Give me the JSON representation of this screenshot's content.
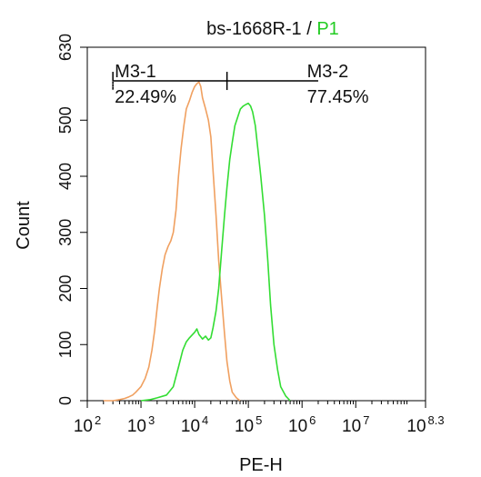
{
  "chart_data": {
    "type": "line",
    "title_main": "bs-1668R-1 / ",
    "title_gate": "P1",
    "xlabel": "PE-H",
    "ylabel": "Count",
    "x_scale": "log",
    "xlim": [
      100,
      199526231
    ],
    "ylim": [
      0,
      630
    ],
    "x_ticks": [
      {
        "value": 100,
        "base": "10",
        "exp": "2"
      },
      {
        "value": 1000,
        "base": "10",
        "exp": "3"
      },
      {
        "value": 10000,
        "base": "10",
        "exp": "4"
      },
      {
        "value": 100000,
        "base": "10",
        "exp": "5"
      },
      {
        "value": 1000000,
        "base": "10",
        "exp": "6"
      },
      {
        "value": 10000000,
        "base": "10",
        "exp": "7"
      },
      {
        "value": 199526231,
        "base": "10",
        "exp": "8.3"
      }
    ],
    "y_ticks": [
      0,
      100,
      200,
      300,
      400,
      500,
      630
    ],
    "grid": false,
    "series": [
      {
        "color": "#f0a060",
        "points": [
          [
            200,
            0
          ],
          [
            300,
            0
          ],
          [
            400,
            2
          ],
          [
            500,
            4
          ],
          [
            600,
            7
          ],
          [
            700,
            10
          ],
          [
            800,
            15
          ],
          [
            1000,
            25
          ],
          [
            1200,
            40
          ],
          [
            1400,
            60
          ],
          [
            1600,
            90
          ],
          [
            1800,
            125
          ],
          [
            2000,
            165
          ],
          [
            2200,
            200
          ],
          [
            2500,
            235
          ],
          [
            2800,
            260
          ],
          [
            3200,
            275
          ],
          [
            3600,
            285
          ],
          [
            4000,
            300
          ],
          [
            4500,
            340
          ],
          [
            5000,
            400
          ],
          [
            5600,
            450
          ],
          [
            6300,
            490
          ],
          [
            7000,
            520
          ],
          [
            8000,
            535
          ],
          [
            9000,
            550
          ],
          [
            10000,
            560
          ],
          [
            11000,
            565
          ],
          [
            12000,
            568
          ],
          [
            13000,
            560
          ],
          [
            14000,
            540
          ],
          [
            16000,
            520
          ],
          [
            18000,
            500
          ],
          [
            20000,
            470
          ],
          [
            22000,
            410
          ],
          [
            25000,
            330
          ],
          [
            28000,
            250
          ],
          [
            32000,
            180
          ],
          [
            36000,
            120
          ],
          [
            40000,
            70
          ],
          [
            45000,
            35
          ],
          [
            50000,
            15
          ],
          [
            60000,
            5
          ],
          [
            70000,
            0
          ]
        ]
      },
      {
        "color": "#33dd33",
        "points": [
          [
            1000,
            0
          ],
          [
            1500,
            2
          ],
          [
            2000,
            5
          ],
          [
            3000,
            10
          ],
          [
            4000,
            25
          ],
          [
            5000,
            60
          ],
          [
            6000,
            90
          ],
          [
            7000,
            105
          ],
          [
            8000,
            112
          ],
          [
            10000,
            122
          ],
          [
            11000,
            128
          ],
          [
            12000,
            118
          ],
          [
            14000,
            110
          ],
          [
            16000,
            115
          ],
          [
            18000,
            108
          ],
          [
            20000,
            112
          ],
          [
            22000,
            130
          ],
          [
            25000,
            160
          ],
          [
            28000,
            200
          ],
          [
            32000,
            270
          ],
          [
            36000,
            330
          ],
          [
            40000,
            380
          ],
          [
            45000,
            430
          ],
          [
            50000,
            460
          ],
          [
            56000,
            490
          ],
          [
            63000,
            505
          ],
          [
            71000,
            520
          ],
          [
            80000,
            525
          ],
          [
            90000,
            528
          ],
          [
            100000,
            530
          ],
          [
            110000,
            525
          ],
          [
            120000,
            515
          ],
          [
            135000,
            490
          ],
          [
            150000,
            450
          ],
          [
            170000,
            400
          ],
          [
            200000,
            330
          ],
          [
            230000,
            250
          ],
          [
            260000,
            170
          ],
          [
            300000,
            100
          ],
          [
            350000,
            55
          ],
          [
            400000,
            25
          ],
          [
            500000,
            8
          ],
          [
            600000,
            0
          ]
        ]
      }
    ],
    "markers": [
      {
        "name": "M3-1",
        "percent": "22.49%",
        "x_start": 300,
        "x_end": 40000,
        "y": 570
      },
      {
        "name": "M3-2",
        "percent": "77.45%",
        "x_start": 40000,
        "x_end": 2000000,
        "y": 570
      }
    ],
    "colors": {
      "axis": "#000000",
      "gate_text": "#22cc22",
      "marker_line": "#000000",
      "marker_dotted": "#777777"
    }
  }
}
